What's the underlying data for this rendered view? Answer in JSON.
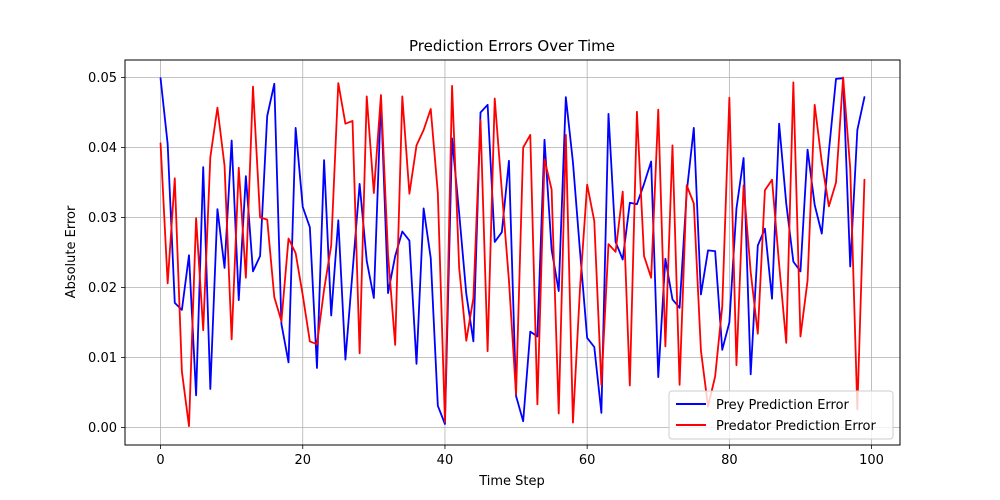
{
  "chart_data": {
    "type": "line",
    "title": "Prediction Errors Over Time",
    "xlabel": "Time Step",
    "ylabel": "Absolute Error",
    "xlim": [
      -5,
      104
    ],
    "ylim": [
      -0.0025,
      0.0525
    ],
    "xticks": [
      0,
      20,
      40,
      60,
      80,
      100
    ],
    "yticks": [
      0.0,
      0.01,
      0.02,
      0.03,
      0.04,
      0.05
    ],
    "ytick_labels": [
      "0.00",
      "0.01",
      "0.02",
      "0.03",
      "0.04",
      "0.05"
    ],
    "grid": true,
    "legend_position": "lower-right",
    "x": [
      0,
      1,
      2,
      3,
      4,
      5,
      6,
      7,
      8,
      9,
      10,
      11,
      12,
      13,
      14,
      15,
      16,
      17,
      18,
      19,
      20,
      21,
      22,
      23,
      24,
      25,
      26,
      27,
      28,
      29,
      30,
      31,
      32,
      33,
      34,
      35,
      36,
      37,
      38,
      39,
      40,
      41,
      42,
      43,
      44,
      45,
      46,
      47,
      48,
      49,
      50,
      51,
      52,
      53,
      54,
      55,
      56,
      57,
      58,
      59,
      60,
      61,
      62,
      63,
      64,
      65,
      66,
      67,
      68,
      69,
      70,
      71,
      72,
      73,
      74,
      75,
      76,
      77,
      78,
      79,
      80,
      81,
      82,
      83,
      84,
      85,
      86,
      87,
      88,
      89,
      90,
      91,
      92,
      93,
      94,
      95,
      96,
      97,
      98,
      99
    ],
    "series": [
      {
        "name": "Prey Prediction Error",
        "color": "#0000ff",
        "values": [
          0.0499,
          0.0405,
          0.0178,
          0.0168,
          0.0246,
          0.0046,
          0.0372,
          0.0055,
          0.0312,
          0.0228,
          0.041,
          0.0182,
          0.0359,
          0.0223,
          0.0245,
          0.0445,
          0.0491,
          0.0148,
          0.0093,
          0.0428,
          0.0315,
          0.0286,
          0.0085,
          0.0382,
          0.016,
          0.0296,
          0.0097,
          0.0222,
          0.0348,
          0.0238,
          0.0185,
          0.0469,
          0.0192,
          0.0245,
          0.028,
          0.0267,
          0.0091,
          0.0313,
          0.0242,
          0.0031,
          0.0005,
          0.0413,
          0.0306,
          0.0191,
          0.0123,
          0.045,
          0.0461,
          0.0265,
          0.0279,
          0.0381,
          0.0045,
          0.0009,
          0.0137,
          0.013,
          0.0411,
          0.0254,
          0.0195,
          0.0472,
          0.0379,
          0.0251,
          0.0128,
          0.0115,
          0.0021,
          0.0448,
          0.0265,
          0.024,
          0.0321,
          0.0319,
          0.0348,
          0.038,
          0.0072,
          0.0241,
          0.0183,
          0.0171,
          0.0336,
          0.0428,
          0.019,
          0.0253,
          0.0252,
          0.0111,
          0.015,
          0.0313,
          0.0385,
          0.0076,
          0.026,
          0.0284,
          0.0184,
          0.0434,
          0.032,
          0.0237,
          0.0223,
          0.0397,
          0.0318,
          0.0277,
          0.0395,
          0.0498,
          0.0499,
          0.023,
          0.0425,
          0.0472
        ]
      },
      {
        "name": "Predator Prediction Error",
        "color": "#ff0000",
        "values": [
          0.0406,
          0.0206,
          0.0356,
          0.008,
          0.0002,
          0.0299,
          0.0139,
          0.0386,
          0.0457,
          0.0374,
          0.0126,
          0.0371,
          0.0214,
          0.0487,
          0.03,
          0.0297,
          0.0186,
          0.0152,
          0.027,
          0.0249,
          0.0189,
          0.0123,
          0.0119,
          0.0197,
          0.026,
          0.0492,
          0.0434,
          0.0438,
          0.0106,
          0.0473,
          0.0335,
          0.0475,
          0.0246,
          0.0118,
          0.0473,
          0.0334,
          0.0403,
          0.0425,
          0.0455,
          0.0335,
          0.0008,
          0.0488,
          0.0228,
          0.0124,
          0.0185,
          0.0439,
          0.0109,
          0.047,
          0.0338,
          0.021,
          0.0047,
          0.04,
          0.0418,
          0.0033,
          0.0383,
          0.034,
          0.002,
          0.0418,
          0.0007,
          0.02,
          0.0347,
          0.0295,
          0.0061,
          0.0262,
          0.0251,
          0.0337,
          0.006,
          0.0451,
          0.0245,
          0.0214,
          0.0454,
          0.0116,
          0.0403,
          0.0061,
          0.0346,
          0.032,
          0.011,
          0.003,
          0.0073,
          0.0173,
          0.0471,
          0.0089,
          0.0346,
          0.0222,
          0.0134,
          0.0339,
          0.0354,
          0.0233,
          0.0121,
          0.0493,
          0.013,
          0.021,
          0.0461,
          0.0379,
          0.0316,
          0.035,
          0.05,
          0.037,
          0.0026,
          0.0354
        ]
      }
    ]
  }
}
